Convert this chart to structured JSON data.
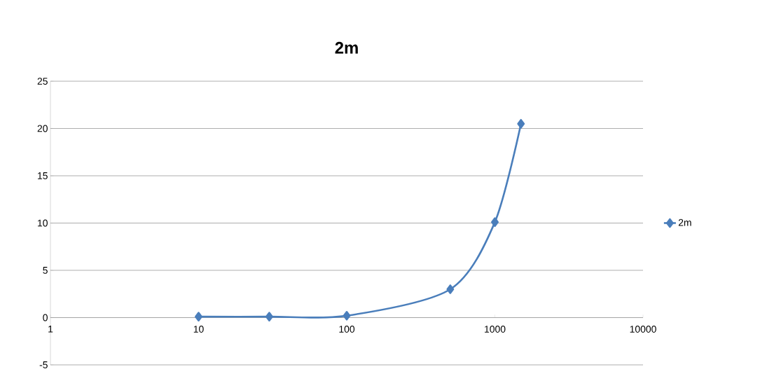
{
  "chart_data": {
    "type": "line",
    "title": "2m",
    "x": [
      10,
      30,
      100,
      500,
      1000,
      1500
    ],
    "series": [
      {
        "name": "2m",
        "color": "#4a7ebb",
        "values": [
          0.1,
          0.1,
          0.2,
          3,
          10.1,
          20.5
        ]
      }
    ],
    "xlim": [
      1,
      10000
    ],
    "ylim": [
      -5,
      25
    ],
    "xticks": [
      1,
      10,
      100,
      1000,
      10000
    ],
    "yticks": [
      -5,
      0,
      5,
      10,
      15,
      20,
      25
    ],
    "log": "x",
    "grid": "y",
    "legend": "right",
    "marker": "diamond"
  }
}
